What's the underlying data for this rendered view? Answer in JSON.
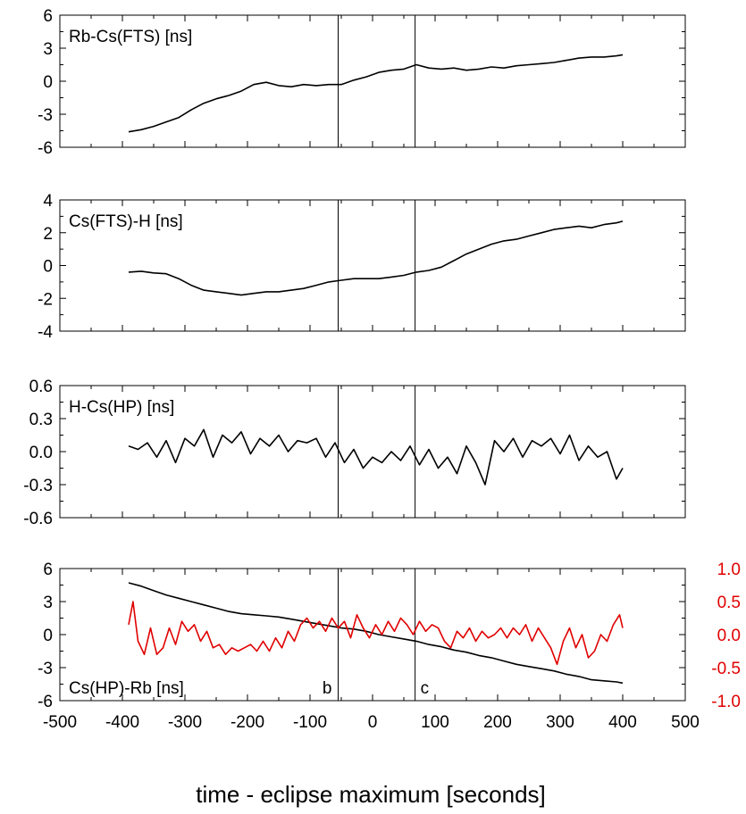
{
  "chart_data": [
    {
      "type": "line",
      "annotation": "Rb-Cs(FTS)  [ns]",
      "xlim": [
        -500,
        500
      ],
      "ylim": [
        -6,
        6
      ],
      "yticks": [
        -6,
        -3,
        0,
        3,
        6
      ],
      "yticklabels": [
        "-6",
        "-3",
        "0",
        "3",
        "6"
      ],
      "markers_x": [
        -55,
        68
      ],
      "series": [
        {
          "color": "#000000",
          "x": [
            -390,
            -370,
            -350,
            -330,
            -310,
            -290,
            -270,
            -250,
            -230,
            -210,
            -190,
            -170,
            -150,
            -130,
            -110,
            -90,
            -70,
            -50,
            -30,
            -10,
            10,
            30,
            50,
            70,
            90,
            110,
            130,
            150,
            170,
            190,
            210,
            230,
            250,
            270,
            290,
            310,
            330,
            350,
            370,
            390,
            400
          ],
          "y": [
            -4.6,
            -4.4,
            -4.1,
            -3.7,
            -3.3,
            -2.6,
            -2.0,
            -1.6,
            -1.3,
            -0.9,
            -0.3,
            -0.1,
            -0.4,
            -0.5,
            -0.3,
            -0.4,
            -0.3,
            -0.3,
            0.1,
            0.4,
            0.8,
            1.0,
            1.1,
            1.5,
            1.2,
            1.1,
            1.2,
            1.0,
            1.1,
            1.3,
            1.2,
            1.4,
            1.5,
            1.6,
            1.7,
            1.9,
            2.1,
            2.2,
            2.2,
            2.3,
            2.4
          ]
        }
      ]
    },
    {
      "type": "line",
      "annotation": "Cs(FTS)-H  [ns]",
      "xlim": [
        -500,
        500
      ],
      "ylim": [
        -4,
        4
      ],
      "yticks": [
        -4,
        -2,
        0,
        2,
        4
      ],
      "yticklabels": [
        "-4",
        "-2",
        "0",
        "2",
        "4"
      ],
      "markers_x": [
        -55,
        68
      ],
      "series": [
        {
          "color": "#000000",
          "x": [
            -390,
            -370,
            -350,
            -330,
            -310,
            -290,
            -270,
            -250,
            -230,
            -210,
            -190,
            -170,
            -150,
            -130,
            -110,
            -90,
            -70,
            -50,
            -30,
            -10,
            10,
            30,
            50,
            70,
            90,
            110,
            130,
            150,
            170,
            190,
            210,
            230,
            250,
            270,
            290,
            310,
            330,
            350,
            370,
            390,
            400
          ],
          "y": [
            -0.4,
            -0.35,
            -0.45,
            -0.5,
            -0.8,
            -1.2,
            -1.5,
            -1.6,
            -1.7,
            -1.8,
            -1.7,
            -1.6,
            -1.6,
            -1.5,
            -1.4,
            -1.2,
            -1.0,
            -0.9,
            -0.8,
            -0.8,
            -0.8,
            -0.7,
            -0.6,
            -0.4,
            -0.3,
            -0.1,
            0.3,
            0.7,
            1.0,
            1.3,
            1.5,
            1.6,
            1.8,
            2.0,
            2.2,
            2.3,
            2.4,
            2.3,
            2.5,
            2.6,
            2.7
          ]
        }
      ]
    },
    {
      "type": "line",
      "annotation": "H-Cs(HP)   [ns]",
      "xlim": [
        -500,
        500
      ],
      "ylim": [
        -0.6,
        0.6
      ],
      "yticks": [
        -0.6,
        -0.3,
        0.0,
        0.3,
        0.6
      ],
      "yticklabels": [
        "-0.6",
        "-0.3",
        "0.0",
        "0.3",
        "0.6"
      ],
      "markers_x": [
        -55,
        68
      ],
      "series": [
        {
          "color": "#000000",
          "x": [
            -390,
            -375,
            -360,
            -345,
            -330,
            -315,
            -300,
            -285,
            -270,
            -255,
            -240,
            -225,
            -210,
            -195,
            -180,
            -165,
            -150,
            -135,
            -120,
            -105,
            -90,
            -75,
            -60,
            -45,
            -30,
            -15,
            0,
            15,
            30,
            45,
            60,
            75,
            90,
            105,
            120,
            135,
            150,
            165,
            180,
            195,
            210,
            225,
            240,
            255,
            270,
            285,
            300,
            315,
            330,
            345,
            360,
            375,
            390,
            400
          ],
          "y": [
            0.05,
            0.02,
            0.08,
            -0.05,
            0.1,
            -0.1,
            0.12,
            0.05,
            0.2,
            -0.05,
            0.15,
            0.08,
            0.18,
            -0.02,
            0.12,
            0.05,
            0.15,
            0.0,
            0.1,
            0.08,
            0.12,
            -0.05,
            0.08,
            -0.1,
            0.02,
            -0.15,
            -0.05,
            -0.1,
            0.0,
            -0.08,
            0.05,
            -0.12,
            0.02,
            -0.15,
            -0.05,
            -0.2,
            0.05,
            -0.1,
            -0.3,
            0.1,
            0.0,
            0.12,
            -0.05,
            0.1,
            0.05,
            0.12,
            -0.02,
            0.15,
            -0.08,
            0.05,
            -0.05,
            0.0,
            -0.25,
            -0.15
          ]
        }
      ]
    },
    {
      "type": "line",
      "annotation": "Cs(HP)-Rb  [ns]",
      "xlim": [
        -500,
        500
      ],
      "ylim": [
        -6,
        6
      ],
      "yticks": [
        -6,
        -3,
        0,
        3,
        6
      ],
      "yticklabels": [
        "-6",
        "-3",
        "0",
        "3",
        "6"
      ],
      "ylim_right": [
        -1.0,
        1.0
      ],
      "yticks_right": [
        -1.0,
        -0.5,
        0.0,
        0.5,
        1.0
      ],
      "yticklabels_right": [
        "-1.0",
        "-0.5",
        "0.0",
        "0.5",
        "1.0"
      ],
      "markers_x": [
        -55,
        68
      ],
      "marker_labels": [
        "b",
        "c"
      ],
      "xticks": [
        -500,
        -400,
        -300,
        -200,
        -100,
        0,
        100,
        200,
        300,
        400,
        500
      ],
      "xticklabels": [
        "-500",
        "-400",
        "-300",
        "-200",
        "-100",
        "0",
        "100",
        "200",
        "300",
        "400",
        "500"
      ],
      "series": [
        {
          "color": "#000000",
          "axis": "left",
          "x": [
            -390,
            -370,
            -350,
            -330,
            -310,
            -290,
            -270,
            -250,
            -230,
            -210,
            -190,
            -170,
            -150,
            -130,
            -110,
            -90,
            -70,
            -50,
            -30,
            -10,
            10,
            30,
            50,
            70,
            90,
            110,
            130,
            150,
            170,
            190,
            210,
            230,
            250,
            270,
            290,
            310,
            330,
            350,
            370,
            390,
            400
          ],
          "y": [
            4.7,
            4.4,
            4.0,
            3.6,
            3.3,
            3.0,
            2.7,
            2.4,
            2.1,
            1.9,
            1.8,
            1.7,
            1.6,
            1.4,
            1.2,
            1.0,
            0.8,
            0.6,
            0.5,
            0.3,
            0.0,
            -0.2,
            -0.4,
            -0.6,
            -0.9,
            -1.1,
            -1.4,
            -1.6,
            -1.9,
            -2.1,
            -2.4,
            -2.7,
            -2.9,
            -3.1,
            -3.3,
            -3.6,
            -3.8,
            -4.1,
            -4.2,
            -4.3,
            -4.4
          ]
        },
        {
          "color": "#e00000",
          "axis": "right",
          "x": [
            -390,
            -383,
            -375,
            -365,
            -355,
            -345,
            -335,
            -325,
            -315,
            -305,
            -295,
            -285,
            -275,
            -265,
            -255,
            -245,
            -235,
            -225,
            -215,
            -205,
            -195,
            -185,
            -175,
            -165,
            -155,
            -145,
            -135,
            -125,
            -115,
            -105,
            -95,
            -85,
            -75,
            -65,
            -55,
            -45,
            -35,
            -25,
            -15,
            -5,
            5,
            15,
            25,
            35,
            45,
            55,
            65,
            75,
            85,
            95,
            105,
            115,
            125,
            135,
            145,
            155,
            165,
            175,
            185,
            195,
            205,
            215,
            225,
            235,
            245,
            255,
            265,
            275,
            285,
            295,
            305,
            315,
            325,
            335,
            345,
            355,
            365,
            375,
            385,
            395,
            400
          ],
          "y": [
            0.15,
            0.5,
            -0.1,
            -0.3,
            0.1,
            -0.3,
            -0.2,
            0.1,
            -0.15,
            0.2,
            0.05,
            0.15,
            -0.1,
            0.05,
            -0.2,
            -0.15,
            -0.3,
            -0.2,
            -0.25,
            -0.2,
            -0.15,
            -0.25,
            -0.1,
            -0.25,
            -0.05,
            -0.2,
            0.05,
            -0.1,
            0.15,
            0.25,
            0.1,
            0.2,
            0.05,
            0.25,
            0.1,
            0.2,
            -0.05,
            0.3,
            0.1,
            -0.05,
            0.15,
            0.0,
            0.2,
            0.05,
            0.25,
            0.15,
            0.0,
            0.2,
            0.05,
            0.15,
            0.1,
            -0.1,
            -0.2,
            0.05,
            -0.05,
            0.1,
            -0.1,
            0.05,
            -0.05,
            0.0,
            0.1,
            -0.05,
            0.1,
            0.0,
            0.15,
            -0.1,
            0.1,
            -0.05,
            -0.2,
            -0.45,
            -0.1,
            0.1,
            -0.2,
            0.0,
            -0.35,
            -0.25,
            0.0,
            -0.1,
            0.15,
            0.3,
            0.1
          ]
        }
      ]
    }
  ],
  "xlabel": "time - eclipse maximum [seconds]"
}
